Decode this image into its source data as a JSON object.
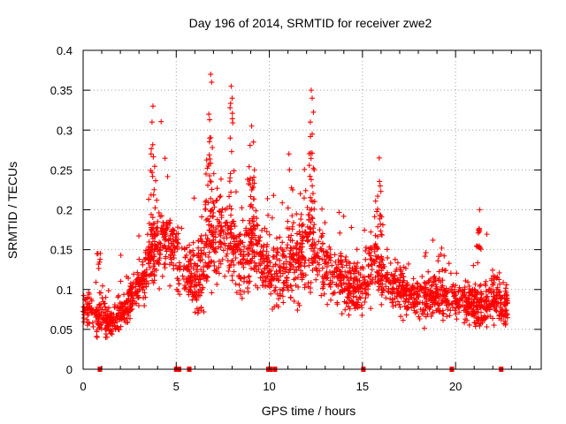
{
  "chart_data": {
    "type": "scatter",
    "title": "Day 196 of 2014, SRMTID for receiver zwe2",
    "xlabel": "GPS time / hours",
    "ylabel": "SRMTID / TECUs",
    "xlim": [
      0,
      24.6
    ],
    "ylim": [
      0,
      0.4
    ],
    "xticks": [
      0,
      5,
      10,
      15,
      20
    ],
    "yticks": [
      0,
      0.05,
      0.1,
      0.15,
      0.2,
      0.25,
      0.3,
      0.35,
      0.4
    ],
    "xtick_labels": [
      "0",
      "5",
      "10",
      "15",
      "20"
    ],
    "ytick_labels": [
      "0",
      "0.05",
      "0.1",
      "0.15",
      "0.2",
      "0.25",
      "0.3",
      "0.35",
      "0.4"
    ],
    "grid": true,
    "marker": "plus",
    "color": "#ff0000",
    "series_envelope": {
      "name": "SRMTID",
      "x": [
        0.0,
        0.5,
        1.0,
        1.5,
        2.0,
        2.5,
        3.0,
        3.5,
        4.0,
        4.5,
        5.0,
        5.5,
        6.0,
        6.5,
        7.0,
        7.5,
        8.0,
        8.5,
        9.0,
        9.5,
        10.0,
        10.5,
        11.0,
        11.5,
        12.0,
        12.5,
        13.0,
        13.5,
        14.0,
        14.5,
        15.0,
        15.5,
        16.0,
        16.5,
        17.0,
        17.5,
        18.0,
        18.5,
        19.0,
        19.5,
        20.0,
        20.5,
        21.0,
        21.5,
        22.0,
        22.5,
        22.8
      ],
      "center": [
        0.075,
        0.07,
        0.065,
        0.06,
        0.07,
        0.085,
        0.105,
        0.13,
        0.16,
        0.165,
        0.145,
        0.125,
        0.11,
        0.13,
        0.165,
        0.17,
        0.155,
        0.14,
        0.155,
        0.14,
        0.125,
        0.115,
        0.125,
        0.14,
        0.155,
        0.15,
        0.13,
        0.12,
        0.11,
        0.1,
        0.1,
        0.13,
        0.12,
        0.11,
        0.1,
        0.09,
        0.085,
        0.09,
        0.095,
        0.09,
        0.09,
        0.085,
        0.08,
        0.08,
        0.095,
        0.085,
        0.085
      ],
      "spread": [
        0.02,
        0.02,
        0.025,
        0.02,
        0.022,
        0.025,
        0.03,
        0.035,
        0.05,
        0.035,
        0.035,
        0.035,
        0.04,
        0.05,
        0.06,
        0.05,
        0.045,
        0.045,
        0.05,
        0.04,
        0.035,
        0.035,
        0.04,
        0.045,
        0.05,
        0.05,
        0.045,
        0.04,
        0.035,
        0.035,
        0.035,
        0.045,
        0.035,
        0.03,
        0.028,
        0.025,
        0.025,
        0.025,
        0.028,
        0.025,
        0.025,
        0.025,
        0.025,
        0.028,
        0.035,
        0.03,
        0.025
      ]
    },
    "peaks": [
      {
        "x": 3.75,
        "y": 0.33
      },
      {
        "x": 3.7,
        "y": 0.31
      },
      {
        "x": 3.65,
        "y": 0.27
      },
      {
        "x": 6.85,
        "y": 0.37
      },
      {
        "x": 6.9,
        "y": 0.36
      },
      {
        "x": 6.75,
        "y": 0.32
      },
      {
        "x": 6.8,
        "y": 0.29
      },
      {
        "x": 7.95,
        "y": 0.355
      },
      {
        "x": 8.0,
        "y": 0.34
      },
      {
        "x": 7.9,
        "y": 0.29
      },
      {
        "x": 9.05,
        "y": 0.305
      },
      {
        "x": 9.15,
        "y": 0.285
      },
      {
        "x": 9.2,
        "y": 0.25
      },
      {
        "x": 12.25,
        "y": 0.35
      },
      {
        "x": 12.3,
        "y": 0.34
      },
      {
        "x": 12.2,
        "y": 0.31
      },
      {
        "x": 12.3,
        "y": 0.295
      },
      {
        "x": 15.9,
        "y": 0.265
      },
      {
        "x": 15.95,
        "y": 0.23
      },
      {
        "x": 21.3,
        "y": 0.2
      },
      {
        "x": 21.25,
        "y": 0.175
      },
      {
        "x": 0.8,
        "y": 0.145
      },
      {
        "x": 6.6,
        "y": 0.245
      },
      {
        "x": 11.25,
        "y": 0.225
      }
    ],
    "zero_values_x": [
      0.9,
      5.0,
      5.15,
      5.7,
      9.95,
      10.05,
      10.3,
      15.05,
      19.8,
      22.45
    ]
  }
}
